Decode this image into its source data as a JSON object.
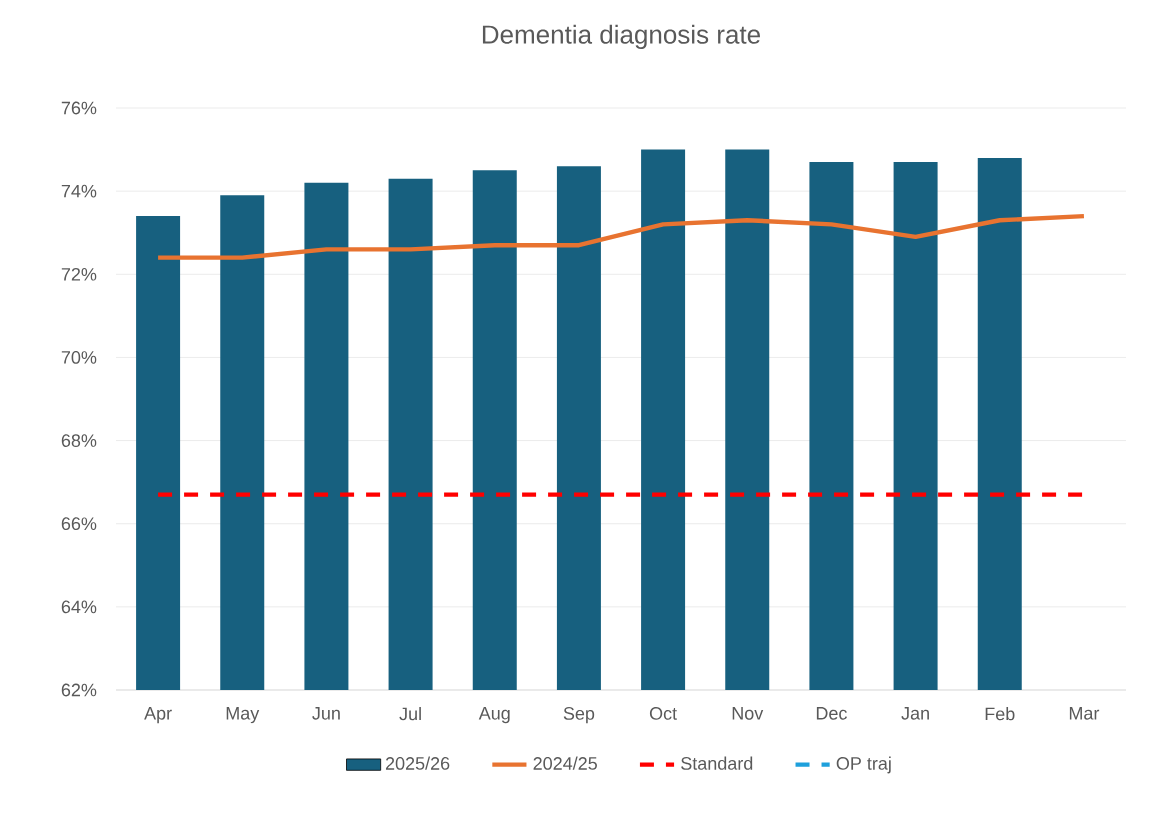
{
  "chart_data": {
    "type": "bar",
    "title": "Dementia diagnosis rate",
    "categories": [
      "Apr",
      "May",
      "Jun",
      "Jul",
      "Aug",
      "Sep",
      "Oct",
      "Nov",
      "Dec",
      "Jan",
      "Feb",
      "Mar"
    ],
    "series": [
      {
        "name": "2025/26",
        "color": "#17607f",
        "values": [
          73.4,
          73.9,
          74.2,
          74.3,
          74.5,
          74.6,
          75.0,
          75.0,
          74.7,
          74.7,
          74.8,
          null
        ]
      },
      {
        "name": "2024/25",
        "type": "line",
        "color": "#e87330",
        "line_style": "solid",
        "values": [
          72.4,
          72.4,
          72.6,
          72.6,
          72.7,
          72.7,
          73.2,
          73.3,
          73.2,
          72.9,
          73.3,
          73.4
        ]
      },
      {
        "name": "Standard",
        "type": "line",
        "color": "#ff0000",
        "line_style": "dashed",
        "values": [
          66.7,
          66.7,
          66.7,
          66.7,
          66.7,
          66.7,
          66.7,
          66.7,
          66.7,
          66.7,
          66.7,
          66.7
        ]
      },
      {
        "name": "OP traj",
        "type": "line",
        "color": "#1ea0dc",
        "line_style": "dashed",
        "values": [
          null,
          null,
          null,
          null,
          null,
          null,
          null,
          null,
          null,
          null,
          null,
          null
        ]
      }
    ],
    "ylim": [
      62,
      76
    ],
    "yticks": [
      {
        "value": 62,
        "label": "62%"
      },
      {
        "value": 64,
        "label": "64%"
      },
      {
        "value": 66,
        "label": "66%"
      },
      {
        "value": 68,
        "label": "68%"
      },
      {
        "value": 70,
        "label": "70%"
      },
      {
        "value": 72,
        "label": "72%"
      },
      {
        "value": 74,
        "label": "74%"
      },
      {
        "value": 76,
        "label": "76%"
      }
    ],
    "grid": "y",
    "legend": "bottom",
    "marker": "none"
  }
}
